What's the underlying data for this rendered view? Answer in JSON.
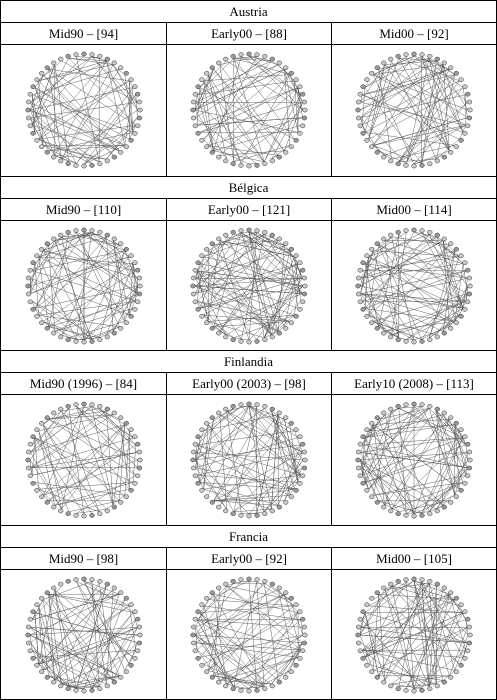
{
  "sections": [
    {
      "country": "Austria",
      "panels": [
        {
          "label": "Mid90 – [94]",
          "edges": 94
        },
        {
          "label": "Early00 – [88]",
          "edges": 88
        },
        {
          "label": "Mid00 – [92]",
          "edges": 92
        }
      ]
    },
    {
      "country": "Bélgica",
      "panels": [
        {
          "label": "Mid90 – [110]",
          "edges": 110
        },
        {
          "label": "Early00 – [121]",
          "edges": 121
        },
        {
          "label": "Mid00 – [114]",
          "edges": 114
        }
      ]
    },
    {
      "country": "Finlandia",
      "panels": [
        {
          "label": "Mid90 (1996) – [84]",
          "edges": 84
        },
        {
          "label": "Early00 (2003) – [98]",
          "edges": 98
        },
        {
          "label": "Early10 (2008) – [113]",
          "edges": 113
        }
      ]
    },
    {
      "country": "Francia",
      "panels": [
        {
          "label": "Mid90 – [98]",
          "edges": 98
        },
        {
          "label": "Early00 – [92]",
          "edges": 92
        },
        {
          "label": "Mid00 – [105]",
          "edges": 105
        }
      ]
    }
  ]
}
